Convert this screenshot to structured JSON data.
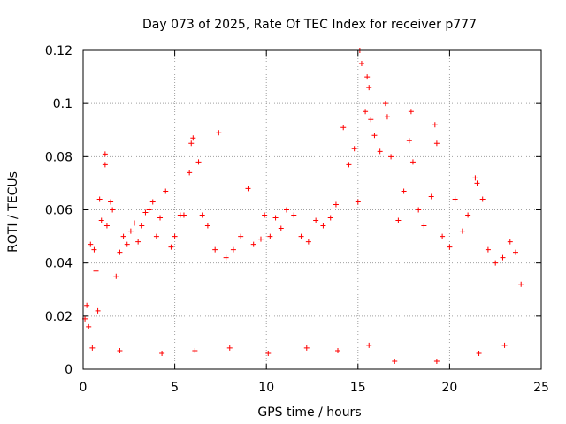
{
  "chart_data": {
    "type": "scatter",
    "title": "Day 073 of 2025, Rate Of TEC Index for receiver p777",
    "xlabel": "GPS time / hours",
    "ylabel": "ROTI / TECUs",
    "xlim": [
      0,
      25
    ],
    "ylim": [
      0,
      0.12
    ],
    "grid": true,
    "marker": "+",
    "x_ticks": [
      0,
      5,
      10,
      15,
      20,
      25
    ],
    "x_tick_labels": [
      "0",
      "5",
      "10",
      "15",
      "20",
      "25"
    ],
    "y_ticks": [
      0,
      0.02,
      0.04,
      0.06,
      0.08,
      0.1,
      0.12
    ],
    "y_tick_labels": [
      "0",
      "0.02",
      "0.04",
      "0.06",
      "0.08",
      "0.1",
      "0.12"
    ],
    "colors": {
      "points": "#ff0000",
      "grid": "#a0a0a0",
      "axes": "#000000"
    },
    "series": [
      {
        "values": [
          [
            0.1,
            0.019
          ],
          [
            0.2,
            0.024
          ],
          [
            0.3,
            0.016
          ],
          [
            0.4,
            0.047
          ],
          [
            0.6,
            0.045
          ],
          [
            0.7,
            0.037
          ],
          [
            0.8,
            0.022
          ],
          [
            0.9,
            0.064
          ],
          [
            1.0,
            0.056
          ],
          [
            1.2,
            0.081
          ],
          [
            1.2,
            0.077
          ],
          [
            1.3,
            0.054
          ],
          [
            1.5,
            0.063
          ],
          [
            1.6,
            0.06
          ],
          [
            1.8,
            0.035
          ],
          [
            2.0,
            0.044
          ],
          [
            2.2,
            0.05
          ],
          [
            2.4,
            0.047
          ],
          [
            2.6,
            0.052
          ],
          [
            2.8,
            0.055
          ],
          [
            3.0,
            0.048
          ],
          [
            3.2,
            0.054
          ],
          [
            3.4,
            0.059
          ],
          [
            3.6,
            0.06
          ],
          [
            3.8,
            0.063
          ],
          [
            4.0,
            0.05
          ],
          [
            4.2,
            0.057
          ],
          [
            4.5,
            0.067
          ],
          [
            4.8,
            0.046
          ],
          [
            5.0,
            0.05
          ],
          [
            5.3,
            0.058
          ],
          [
            5.5,
            0.058
          ],
          [
            5.8,
            0.074
          ],
          [
            5.9,
            0.085
          ],
          [
            6.0,
            0.087
          ],
          [
            6.3,
            0.078
          ],
          [
            6.5,
            0.058
          ],
          [
            6.8,
            0.054
          ],
          [
            7.2,
            0.045
          ],
          [
            7.4,
            0.089
          ],
          [
            7.8,
            0.042
          ],
          [
            8.2,
            0.045
          ],
          [
            8.6,
            0.05
          ],
          [
            9.0,
            0.068
          ],
          [
            9.3,
            0.047
          ],
          [
            9.7,
            0.049
          ],
          [
            9.9,
            0.058
          ],
          [
            10.2,
            0.05
          ],
          [
            10.5,
            0.057
          ],
          [
            10.8,
            0.053
          ],
          [
            11.1,
            0.06
          ],
          [
            11.5,
            0.058
          ],
          [
            11.9,
            0.05
          ],
          [
            12.3,
            0.048
          ],
          [
            12.7,
            0.056
          ],
          [
            13.1,
            0.054
          ],
          [
            13.5,
            0.057
          ],
          [
            13.8,
            0.062
          ],
          [
            14.2,
            0.091
          ],
          [
            14.5,
            0.077
          ],
          [
            14.8,
            0.083
          ],
          [
            15.0,
            0.063
          ],
          [
            15.1,
            0.12
          ],
          [
            15.2,
            0.115
          ],
          [
            15.4,
            0.097
          ],
          [
            15.5,
            0.11
          ],
          [
            15.6,
            0.106
          ],
          [
            15.7,
            0.094
          ],
          [
            15.9,
            0.088
          ],
          [
            16.2,
            0.082
          ],
          [
            16.5,
            0.1
          ],
          [
            16.6,
            0.095
          ],
          [
            16.8,
            0.08
          ],
          [
            17.2,
            0.056
          ],
          [
            17.5,
            0.067
          ],
          [
            17.8,
            0.086
          ],
          [
            17.9,
            0.097
          ],
          [
            18.0,
            0.078
          ],
          [
            18.3,
            0.06
          ],
          [
            18.6,
            0.054
          ],
          [
            19.0,
            0.065
          ],
          [
            19.2,
            0.092
          ],
          [
            19.3,
            0.085
          ],
          [
            19.6,
            0.05
          ],
          [
            20.0,
            0.046
          ],
          [
            20.3,
            0.064
          ],
          [
            20.7,
            0.052
          ],
          [
            21.0,
            0.058
          ],
          [
            21.4,
            0.072
          ],
          [
            21.5,
            0.07
          ],
          [
            21.8,
            0.064
          ],
          [
            22.1,
            0.045
          ],
          [
            22.5,
            0.04
          ],
          [
            22.9,
            0.042
          ],
          [
            23.3,
            0.048
          ],
          [
            23.6,
            0.044
          ],
          [
            23.9,
            0.032
          ],
          [
            0.5,
            0.008
          ],
          [
            2.0,
            0.007
          ],
          [
            4.3,
            0.006
          ],
          [
            6.1,
            0.007
          ],
          [
            8.0,
            0.008
          ],
          [
            10.1,
            0.006
          ],
          [
            12.2,
            0.008
          ],
          [
            13.9,
            0.007
          ],
          [
            15.6,
            0.009
          ],
          [
            17.0,
            0.003
          ],
          [
            19.3,
            0.003
          ],
          [
            21.6,
            0.006
          ],
          [
            23.0,
            0.009
          ]
        ]
      }
    ]
  }
}
